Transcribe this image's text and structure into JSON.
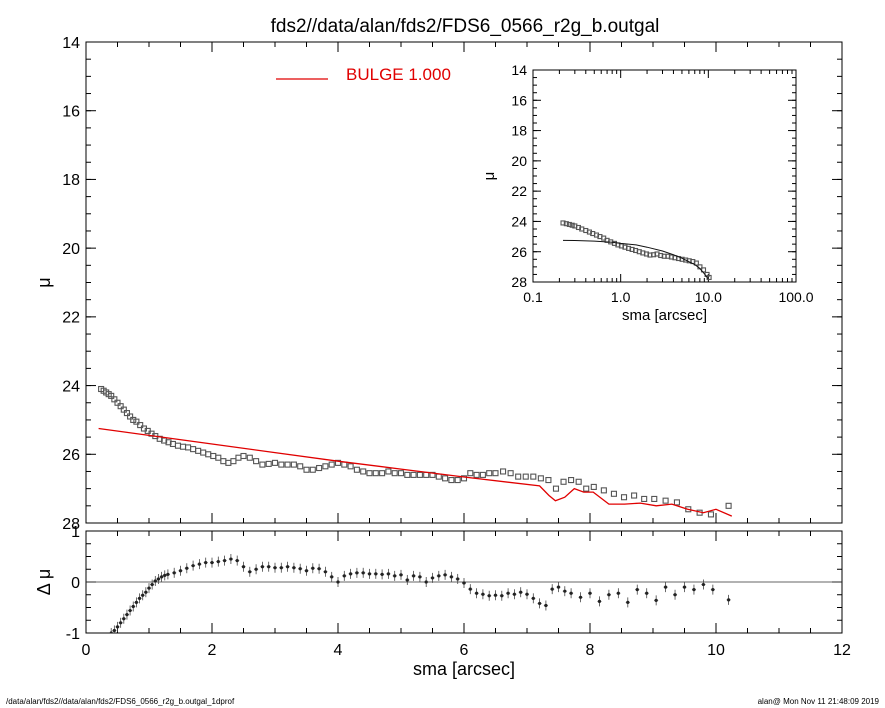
{
  "title": "fds2//data/alan/fds2/FDS6_0566_r2g_b.outgal",
  "footer": {
    "left": "/data/alan/fds2//data/alan/fds2/FDS6_0566_r2g_b.outgal_1dprof",
    "right": "alan@  Mon Nov 11 21:48:09 2019"
  },
  "colors": {
    "model": "#e00000",
    "data": "#555555",
    "axes": "#000000"
  },
  "chart_data": [
    {
      "name": "main-profile",
      "type": "scatter",
      "xlabel": "",
      "ylabel": "μ",
      "xlim": [
        0,
        12
      ],
      "ylim": [
        28,
        14
      ],
      "y_inverted": true,
      "xticks": [
        0,
        2,
        4,
        6,
        8,
        10,
        12
      ],
      "yticks": [
        14,
        16,
        18,
        20,
        22,
        24,
        26,
        28
      ],
      "legend": {
        "label": "BULGE  1.000",
        "placement": "top-center"
      },
      "series": [
        {
          "kind": "data",
          "x": [
            0.24,
            0.28,
            0.32,
            0.36,
            0.4,
            0.45,
            0.5,
            0.55,
            0.6,
            0.65,
            0.7,
            0.75,
            0.8,
            0.86,
            0.92,
            0.98,
            1.04,
            1.1,
            1.17,
            1.24,
            1.31,
            1.38,
            1.46,
            1.54,
            1.62,
            1.7,
            1.78,
            1.86,
            1.94,
            2.02,
            2.1,
            2.18,
            2.26,
            2.34,
            2.42,
            2.5,
            2.6,
            2.7,
            2.8,
            2.9,
            3.0,
            3.1,
            3.2,
            3.3,
            3.4,
            3.5,
            3.6,
            3.7,
            3.8,
            3.9,
            4.0,
            4.1,
            4.2,
            4.3,
            4.4,
            4.5,
            4.6,
            4.7,
            4.8,
            4.9,
            5.0,
            5.1,
            5.2,
            5.3,
            5.4,
            5.5,
            5.6,
            5.7,
            5.8,
            5.9,
            6.0,
            6.1,
            6.2,
            6.3,
            6.4,
            6.5,
            6.62,
            6.74,
            6.86,
            6.98,
            7.1,
            7.22,
            7.34,
            7.46,
            7.58,
            7.7,
            7.82,
            7.94,
            8.06,
            8.22,
            8.38,
            8.54,
            8.7,
            8.86,
            9.02,
            9.2,
            9.38,
            9.56,
            9.74,
            9.92,
            10.2
          ],
          "y": [
            24.1,
            24.15,
            24.2,
            24.25,
            24.3,
            24.4,
            24.5,
            24.6,
            24.7,
            24.8,
            24.9,
            25.0,
            25.05,
            25.15,
            25.25,
            25.32,
            25.4,
            25.47,
            25.55,
            25.6,
            25.65,
            25.7,
            25.75,
            25.78,
            25.8,
            25.85,
            25.9,
            25.95,
            26.0,
            26.05,
            26.1,
            26.2,
            26.25,
            26.2,
            26.1,
            26.05,
            26.1,
            26.2,
            26.3,
            26.28,
            26.25,
            26.3,
            26.3,
            26.3,
            26.35,
            26.45,
            26.45,
            26.4,
            26.35,
            26.3,
            26.25,
            26.3,
            26.35,
            26.45,
            26.5,
            26.55,
            26.55,
            26.55,
            26.5,
            26.55,
            26.55,
            26.6,
            26.6,
            26.6,
            26.6,
            26.6,
            26.65,
            26.7,
            26.75,
            26.75,
            26.7,
            26.55,
            26.6,
            26.6,
            26.55,
            26.55,
            26.5,
            26.55,
            26.65,
            26.65,
            26.65,
            26.7,
            26.75,
            27.0,
            26.8,
            26.75,
            26.8,
            27.0,
            26.95,
            27.05,
            27.15,
            27.25,
            27.2,
            27.3,
            27.3,
            27.35,
            27.4,
            27.6,
            27.7,
            27.75,
            27.5
          ]
        },
        {
          "kind": "model",
          "name": "BULGE",
          "x": [
            0.2,
            1,
            2,
            3,
            4,
            5,
            6,
            7.2,
            7.35,
            7.45,
            7.6,
            7.75,
            7.9,
            8.05,
            8.3,
            8.55,
            8.8,
            9.05,
            9.3,
            9.55,
            9.8,
            10.0,
            10.25
          ],
          "y": [
            25.25,
            25.45,
            25.7,
            25.95,
            26.2,
            26.43,
            26.66,
            26.92,
            27.2,
            27.35,
            27.25,
            27.0,
            27.1,
            27.1,
            27.45,
            27.45,
            27.42,
            27.5,
            27.45,
            27.6,
            27.7,
            27.6,
            27.8
          ]
        }
      ]
    },
    {
      "name": "residuals",
      "type": "scatter",
      "xlabel": "sma [arcsec]",
      "ylabel": "Δ μ",
      "xlim": [
        0,
        12
      ],
      "ylim": [
        -1,
        1
      ],
      "xticks": [
        0,
        2,
        4,
        6,
        8,
        10,
        12
      ],
      "yticks": [
        -1,
        0,
        1
      ],
      "zero_line": true,
      "series": [
        {
          "kind": "residual",
          "x": [
            0.4,
            0.45,
            0.5,
            0.55,
            0.6,
            0.65,
            0.7,
            0.75,
            0.8,
            0.85,
            0.9,
            0.95,
            1.0,
            1.05,
            1.1,
            1.15,
            1.2,
            1.25,
            1.3,
            1.4,
            1.5,
            1.6,
            1.7,
            1.8,
            1.9,
            2.0,
            2.1,
            2.2,
            2.3,
            2.4,
            2.5,
            2.6,
            2.7,
            2.8,
            2.9,
            3.0,
            3.1,
            3.2,
            3.3,
            3.4,
            3.5,
            3.6,
            3.7,
            3.8,
            3.9,
            4.0,
            4.1,
            4.2,
            4.3,
            4.4,
            4.5,
            4.6,
            4.7,
            4.8,
            4.9,
            5.0,
            5.1,
            5.2,
            5.3,
            5.4,
            5.5,
            5.6,
            5.7,
            5.8,
            5.9,
            6.0,
            6.1,
            6.2,
            6.3,
            6.4,
            6.5,
            6.6,
            6.7,
            6.8,
            6.9,
            7.0,
            7.1,
            7.2,
            7.3,
            7.4,
            7.5,
            7.6,
            7.7,
            7.85,
            8.0,
            8.15,
            8.3,
            8.45,
            8.6,
            8.75,
            8.9,
            9.05,
            9.2,
            9.35,
            9.5,
            9.65,
            9.8,
            9.95,
            10.2
          ],
          "y": [
            -1.0,
            -0.95,
            -0.88,
            -0.8,
            -0.72,
            -0.64,
            -0.56,
            -0.48,
            -0.4,
            -0.32,
            -0.26,
            -0.2,
            -0.12,
            -0.05,
            0.02,
            0.06,
            0.1,
            0.13,
            0.15,
            0.18,
            0.22,
            0.27,
            0.32,
            0.35,
            0.38,
            0.38,
            0.4,
            0.42,
            0.45,
            0.42,
            0.3,
            0.2,
            0.25,
            0.3,
            0.3,
            0.28,
            0.28,
            0.3,
            0.28,
            0.26,
            0.22,
            0.27,
            0.26,
            0.2,
            0.1,
            0.0,
            0.12,
            0.16,
            0.18,
            0.18,
            0.16,
            0.16,
            0.15,
            0.16,
            0.12,
            0.14,
            0.04,
            0.12,
            0.1,
            0.0,
            0.08,
            0.12,
            0.14,
            0.1,
            0.06,
            -0.02,
            -0.14,
            -0.22,
            -0.24,
            -0.27,
            -0.26,
            -0.27,
            -0.22,
            -0.24,
            -0.2,
            -0.24,
            -0.32,
            -0.42,
            -0.46,
            -0.14,
            -0.1,
            -0.18,
            -0.22,
            -0.3,
            -0.22,
            -0.38,
            -0.25,
            -0.22,
            -0.4,
            -0.15,
            -0.22,
            -0.36,
            -0.1,
            -0.25,
            -0.1,
            -0.15,
            -0.05,
            -0.15,
            -0.35
          ]
        }
      ]
    },
    {
      "name": "inset-log-profile",
      "type": "scatter",
      "xlabel": "sma [arcsec]",
      "ylabel": "μ",
      "x_scale": "log",
      "xlim": [
        0.1,
        100
      ],
      "ylim": [
        28,
        14
      ],
      "y_inverted": true,
      "xtick_labels": [
        "0.1",
        "1.0",
        "10.0",
        "100.0"
      ],
      "xticks": [
        0.1,
        1,
        10,
        100
      ],
      "yticks": [
        14,
        16,
        18,
        20,
        22,
        24,
        26,
        28
      ],
      "series": [
        {
          "kind": "data",
          "x": [
            0.22,
            0.24,
            0.26,
            0.28,
            0.3,
            0.33,
            0.36,
            0.4,
            0.44,
            0.48,
            0.53,
            0.58,
            0.64,
            0.7,
            0.77,
            0.85,
            0.93,
            1.02,
            1.12,
            1.23,
            1.35,
            1.48,
            1.63,
            1.79,
            1.97,
            2.16,
            2.37,
            2.6,
            2.86,
            3.14,
            3.45,
            3.79,
            4.16,
            4.57,
            5.02,
            5.51,
            6.05,
            6.65,
            7.3,
            8.02,
            8.81,
            9.67,
            10.2
          ],
          "y": [
            24.1,
            24.15,
            24.2,
            24.25,
            24.3,
            24.4,
            24.5,
            24.6,
            24.7,
            24.8,
            24.9,
            25.0,
            25.1,
            25.25,
            25.35,
            25.45,
            25.55,
            25.62,
            25.7,
            25.78,
            25.85,
            25.92,
            26.0,
            26.08,
            26.15,
            26.22,
            26.2,
            26.15,
            26.25,
            26.3,
            26.3,
            26.35,
            26.4,
            26.45,
            26.5,
            26.55,
            26.6,
            26.65,
            26.75,
            27.0,
            27.2,
            27.5,
            27.7
          ]
        },
        {
          "kind": "model",
          "x": [
            0.22,
            0.3,
            0.5,
            0.8,
            1.0,
            1.5,
            2,
            3,
            4,
            5,
            6,
            7,
            8,
            9,
            10
          ],
          "y": [
            25.25,
            25.26,
            25.3,
            25.38,
            25.45,
            25.55,
            25.7,
            25.95,
            26.2,
            26.43,
            26.66,
            26.85,
            27.1,
            27.45,
            27.8
          ]
        }
      ]
    }
  ]
}
